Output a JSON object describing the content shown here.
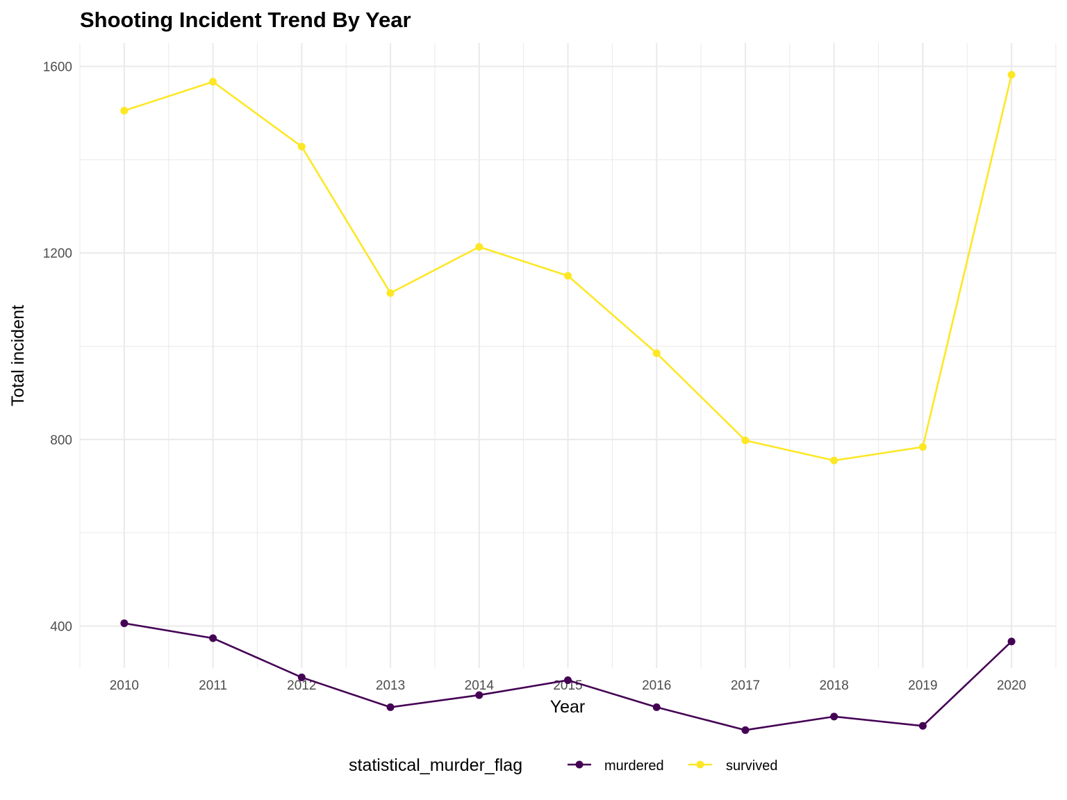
{
  "chart_data": {
    "type": "line",
    "title": "Shooting Incident Trend By Year",
    "xlabel": "Year",
    "ylabel": "Total incident",
    "x": [
      2010,
      2011,
      2012,
      2013,
      2014,
      2015,
      2016,
      2017,
      2018,
      2019,
      2020
    ],
    "x_tick_labels": [
      "2010",
      "2011",
      "2012",
      "2013",
      "2014",
      "2015",
      "2016",
      "2017",
      "2018",
      "2019",
      "2020"
    ],
    "y_ticks": [
      400,
      800,
      1200,
      1600
    ],
    "y_tick_labels": [
      "400",
      "800",
      "1200",
      "1600"
    ],
    "xlim": [
      2009.5,
      2020.5
    ],
    "ylim": [
      310,
      1650
    ],
    "grid": true,
    "legend_position": "bottom",
    "legend_title": "statistical_murder_flag",
    "series": [
      {
        "name": "murdered",
        "color": "#440154",
        "values": [
          406,
          374,
          290,
          226,
          252,
          284,
          226,
          177,
          206,
          186,
          367
        ]
      },
      {
        "name": "survived",
        "color": "#FDE725",
        "values": [
          1505,
          1567,
          1428,
          1114,
          1213,
          1151,
          985,
          798,
          755,
          784,
          1582
        ]
      }
    ]
  }
}
